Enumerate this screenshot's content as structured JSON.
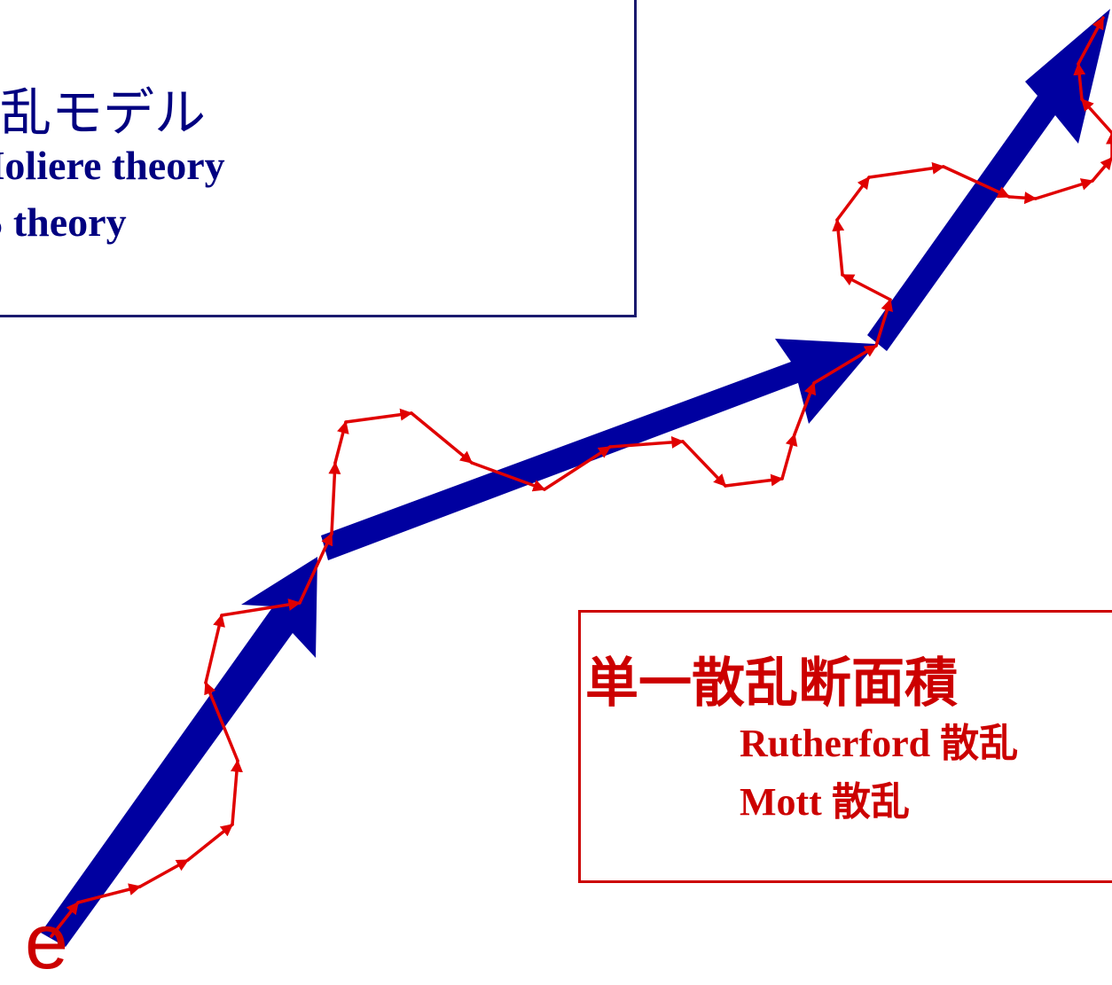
{
  "multiple_scattering": {
    "title": "散乱モデル",
    "items": [
      "Moliere theory",
      "GS theory"
    ]
  },
  "single_scattering": {
    "title": "単一散乱断面積",
    "items": [
      "Rutherford 散乱",
      "Mott 散乱"
    ]
  },
  "electron_label": "e",
  "colors": {
    "main_path": "#0000a0",
    "steps": "#e00000",
    "multi_text": "#000080",
    "single_text": "#cc0000"
  }
}
